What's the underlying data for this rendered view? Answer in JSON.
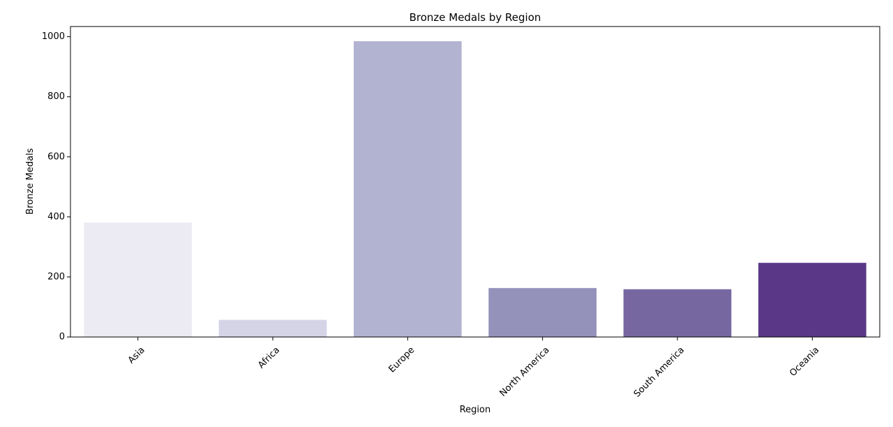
{
  "chart_data": {
    "type": "bar",
    "title": "Bronze Medals by Region",
    "xlabel": "Region",
    "ylabel": "Bronze Medals",
    "categories": [
      "Asia",
      "Africa",
      "Europe",
      "North America",
      "South America",
      "Oceania"
    ],
    "values": [
      381,
      57,
      985,
      163,
      159,
      247
    ],
    "colors": [
      "#ecebf3",
      "#d5d4e7",
      "#b2b2d1",
      "#9491ba",
      "#7767a1",
      "#5a3887"
    ],
    "ylim": [
      0,
      1034
    ],
    "yticks": [
      0,
      200,
      400,
      600,
      800,
      1000
    ],
    "xtick_rotation": 45,
    "grid": false,
    "legend": "none"
  }
}
